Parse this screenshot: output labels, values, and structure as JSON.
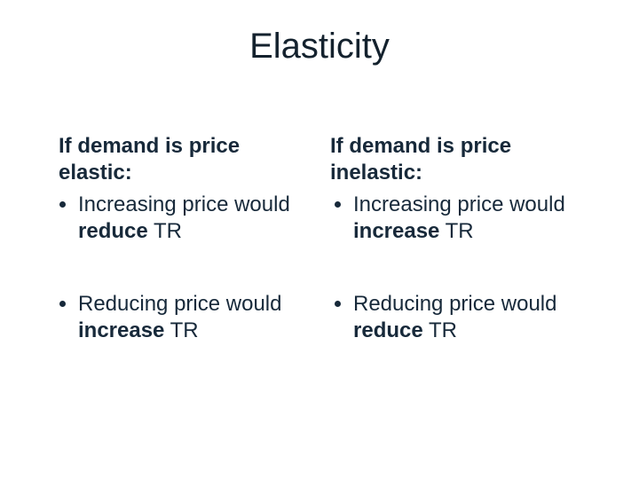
{
  "slide": {
    "title": "Elasticity",
    "background_color": "#ffffff",
    "text_color": "#17293a",
    "title_fontsize": 40,
    "body_fontsize": 24,
    "font_family": "Arial",
    "columns": {
      "left": {
        "heading_prefix": "If demand is price ",
        "heading_emphasis": "elastic:",
        "bullet1_prefix": "Increasing price would ",
        "bullet1_emphasis": "reduce",
        "bullet1_suffix": " TR",
        "bullet2_prefix": "Reducing price would ",
        "bullet2_emphasis": "increase",
        "bullet2_suffix": " TR"
      },
      "right": {
        "heading_prefix": "If demand is price ",
        "heading_emphasis": "inelastic:",
        "bullet1_prefix": "Increasing price would ",
        "bullet1_emphasis": "increase",
        "bullet1_suffix": " TR",
        "bullet2_prefix": "Reducing price would ",
        "bullet2_emphasis": "reduce",
        "bullet2_suffix": " TR"
      }
    }
  }
}
